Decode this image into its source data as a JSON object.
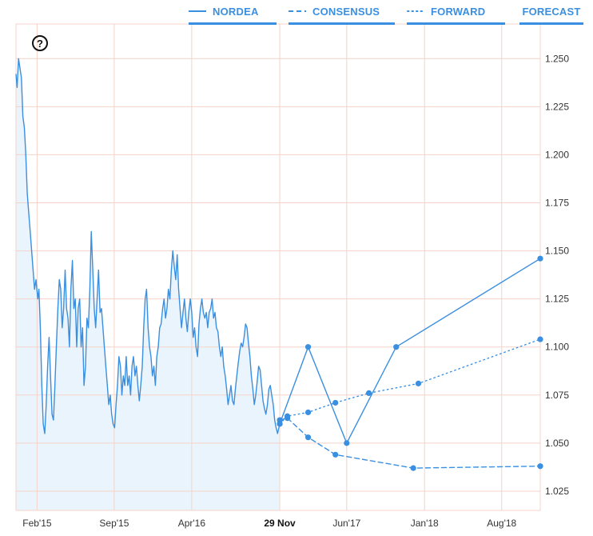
{
  "legend": {
    "items": [
      {
        "label": "NORDEA",
        "style": "solid"
      },
      {
        "label": "CONSENSUS",
        "style": "dashed"
      },
      {
        "label": "FORWARD",
        "style": "dotted"
      },
      {
        "label": "FORECAST",
        "style": "none"
      }
    ]
  },
  "help_icon": {
    "glyph": "?",
    "name": "question-icon"
  },
  "colors": {
    "line": "#3a8fe0",
    "area": "#eaf4fd",
    "grid": "#f4d3c8",
    "text": "#333333"
  },
  "chart_data": {
    "type": "line",
    "x_tick_labels": [
      {
        "label": "Feb'15",
        "date": "2015-02-01",
        "bold": false
      },
      {
        "label": "Sep'15",
        "date": "2015-09-01",
        "bold": false
      },
      {
        "label": "Apr'16",
        "date": "2016-04-01",
        "bold": false
      },
      {
        "label": "29 Nov",
        "date": "2016-11-29",
        "bold": true
      },
      {
        "label": "Jun'17",
        "date": "2017-06-01",
        "bold": false
      },
      {
        "label": "Jan'18",
        "date": "2018-01-01",
        "bold": false
      },
      {
        "label": "Aug'18",
        "date": "2018-08-01",
        "bold": false
      }
    ],
    "y_ticks": [
      "1.250",
      "1.225",
      "1.200",
      "1.175",
      "1.150",
      "1.125",
      "1.100",
      "1.075",
      "1.050",
      "1.025"
    ],
    "ylim": [
      1.015,
      1.268
    ],
    "xlim": [
      "2014-12-05",
      "2018-11-15"
    ],
    "grid": true,
    "history": {
      "dates": [
        "2014-12-05",
        "2014-12-08",
        "2014-12-12",
        "2014-12-16",
        "2014-12-20",
        "2014-12-24",
        "2014-12-28",
        "2015-01-01",
        "2015-01-05",
        "2015-01-09",
        "2015-01-13",
        "2015-01-17",
        "2015-01-21",
        "2015-01-25",
        "2015-01-29",
        "2015-02-03",
        "2015-02-06",
        "2015-02-10",
        "2015-02-14",
        "2015-02-18",
        "2015-02-22",
        "2015-02-26",
        "2015-03-02",
        "2015-03-06",
        "2015-03-10",
        "2015-03-14",
        "2015-03-18",
        "2015-03-22",
        "2015-03-26",
        "2015-03-30",
        "2015-04-03",
        "2015-04-07",
        "2015-04-11",
        "2015-04-15",
        "2015-04-19",
        "2015-04-23",
        "2015-04-27",
        "2015-05-01",
        "2015-05-05",
        "2015-05-09",
        "2015-05-13",
        "2015-05-17",
        "2015-05-21",
        "2015-05-25",
        "2015-05-29",
        "2015-06-02",
        "2015-06-06",
        "2015-06-10",
        "2015-06-14",
        "2015-06-18",
        "2015-06-22",
        "2015-06-26",
        "2015-06-30",
        "2015-07-04",
        "2015-07-08",
        "2015-07-12",
        "2015-07-16",
        "2015-07-20",
        "2015-07-24",
        "2015-07-28",
        "2015-08-01",
        "2015-08-05",
        "2015-08-09",
        "2015-08-13",
        "2015-08-17",
        "2015-08-21",
        "2015-08-25",
        "2015-08-29",
        "2015-09-02",
        "2015-09-06",
        "2015-09-10",
        "2015-09-14",
        "2015-09-18",
        "2015-09-22",
        "2015-09-26",
        "2015-09-30",
        "2015-10-04",
        "2015-10-08",
        "2015-10-12",
        "2015-10-16",
        "2015-10-20",
        "2015-10-24",
        "2015-10-28",
        "2015-11-01",
        "2015-11-05",
        "2015-11-09",
        "2015-11-13",
        "2015-11-17",
        "2015-11-21",
        "2015-11-25",
        "2015-11-29",
        "2015-12-03",
        "2015-12-07",
        "2015-12-11",
        "2015-12-15",
        "2015-12-19",
        "2015-12-23",
        "2015-12-27",
        "2015-12-31",
        "2016-01-04",
        "2016-01-08",
        "2016-01-12",
        "2016-01-16",
        "2016-01-20",
        "2016-01-24",
        "2016-01-28",
        "2016-02-01",
        "2016-02-05",
        "2016-02-09",
        "2016-02-13",
        "2016-02-17",
        "2016-02-21",
        "2016-02-25",
        "2016-02-29",
        "2016-03-04",
        "2016-03-08",
        "2016-03-12",
        "2016-03-16",
        "2016-03-20",
        "2016-03-24",
        "2016-03-28",
        "2016-04-01",
        "2016-04-05",
        "2016-04-09",
        "2016-04-13",
        "2016-04-17",
        "2016-04-21",
        "2016-04-25",
        "2016-04-29",
        "2016-05-03",
        "2016-05-07",
        "2016-05-11",
        "2016-05-15",
        "2016-05-19",
        "2016-05-23",
        "2016-05-27",
        "2016-05-31",
        "2016-06-04",
        "2016-06-08",
        "2016-06-12",
        "2016-06-16",
        "2016-06-20",
        "2016-06-24",
        "2016-06-28",
        "2016-07-02",
        "2016-07-06",
        "2016-07-10",
        "2016-07-14",
        "2016-07-18",
        "2016-07-22",
        "2016-07-26",
        "2016-07-30",
        "2016-08-03",
        "2016-08-07",
        "2016-08-11",
        "2016-08-15",
        "2016-08-19",
        "2016-08-23",
        "2016-08-27",
        "2016-08-31",
        "2016-09-04",
        "2016-09-08",
        "2016-09-12",
        "2016-09-16",
        "2016-09-20",
        "2016-09-24",
        "2016-09-28",
        "2016-10-02",
        "2016-10-06",
        "2016-10-10",
        "2016-10-14",
        "2016-10-18",
        "2016-10-22",
        "2016-10-26",
        "2016-10-30",
        "2016-11-03",
        "2016-11-07",
        "2016-11-11",
        "2016-11-15",
        "2016-11-19",
        "2016-11-23",
        "2016-11-29"
      ],
      "values": [
        1.242,
        1.235,
        1.25,
        1.245,
        1.24,
        1.22,
        1.214,
        1.2,
        1.18,
        1.17,
        1.16,
        1.15,
        1.14,
        1.13,
        1.135,
        1.125,
        1.13,
        1.11,
        1.08,
        1.06,
        1.055,
        1.07,
        1.09,
        1.105,
        1.085,
        1.065,
        1.062,
        1.08,
        1.1,
        1.12,
        1.135,
        1.13,
        1.11,
        1.12,
        1.14,
        1.12,
        1.115,
        1.1,
        1.13,
        1.145,
        1.12,
        1.125,
        1.1,
        1.12,
        1.125,
        1.1,
        1.11,
        1.08,
        1.09,
        1.115,
        1.11,
        1.13,
        1.16,
        1.14,
        1.12,
        1.11,
        1.125,
        1.14,
        1.118,
        1.12,
        1.11,
        1.1,
        1.09,
        1.08,
        1.07,
        1.075,
        1.065,
        1.06,
        1.058,
        1.07,
        1.08,
        1.095,
        1.09,
        1.075,
        1.085,
        1.08,
        1.095,
        1.08,
        1.085,
        1.075,
        1.09,
        1.095,
        1.085,
        1.09,
        1.08,
        1.072,
        1.08,
        1.09,
        1.11,
        1.125,
        1.13,
        1.11,
        1.1,
        1.095,
        1.085,
        1.09,
        1.08,
        1.095,
        1.1,
        1.11,
        1.112,
        1.12,
        1.125,
        1.115,
        1.12,
        1.13,
        1.125,
        1.14,
        1.15,
        1.142,
        1.135,
        1.148,
        1.13,
        1.12,
        1.11,
        1.118,
        1.125,
        1.115,
        1.108,
        1.118,
        1.125,
        1.118,
        1.105,
        1.11,
        1.1,
        1.095,
        1.112,
        1.12,
        1.125,
        1.118,
        1.115,
        1.118,
        1.11,
        1.118,
        1.12,
        1.125,
        1.115,
        1.118,
        1.11,
        1.108,
        1.1,
        1.095,
        1.1,
        1.09,
        1.085,
        1.078,
        1.07,
        1.075,
        1.08,
        1.072,
        1.07,
        1.078,
        1.085,
        1.092,
        1.098,
        1.102,
        1.1,
        1.105,
        1.112,
        1.11,
        1.102,
        1.095,
        1.085,
        1.078,
        1.07,
        1.075,
        1.082,
        1.09,
        1.088,
        1.08,
        1.072,
        1.068,
        1.065,
        1.07,
        1.078,
        1.08,
        1.075,
        1.07,
        1.062,
        1.058,
        1.055,
        1.06
      ]
    },
    "series": [
      {
        "name": "NORDEA",
        "style": "solid",
        "dates": [
          "2016-11-29",
          "2017-02-15",
          "2017-06-01",
          "2017-10-15",
          "2018-11-15"
        ],
        "values": [
          1.06,
          1.1,
          1.05,
          1.1,
          1.146
        ]
      },
      {
        "name": "CONSENSUS",
        "style": "dashed",
        "dates": [
          "2016-11-29",
          "2016-12-20",
          "2017-02-15",
          "2017-05-01",
          "2017-12-01",
          "2018-11-15"
        ],
        "values": [
          1.062,
          1.063,
          1.053,
          1.044,
          1.037,
          1.038
        ]
      },
      {
        "name": "FORWARD",
        "style": "dotted",
        "dates": [
          "2016-11-29",
          "2016-12-20",
          "2017-02-15",
          "2017-05-01",
          "2017-08-01",
          "2017-12-15",
          "2018-11-15"
        ],
        "values": [
          1.06,
          1.064,
          1.066,
          1.071,
          1.076,
          1.081,
          1.104
        ]
      }
    ]
  }
}
